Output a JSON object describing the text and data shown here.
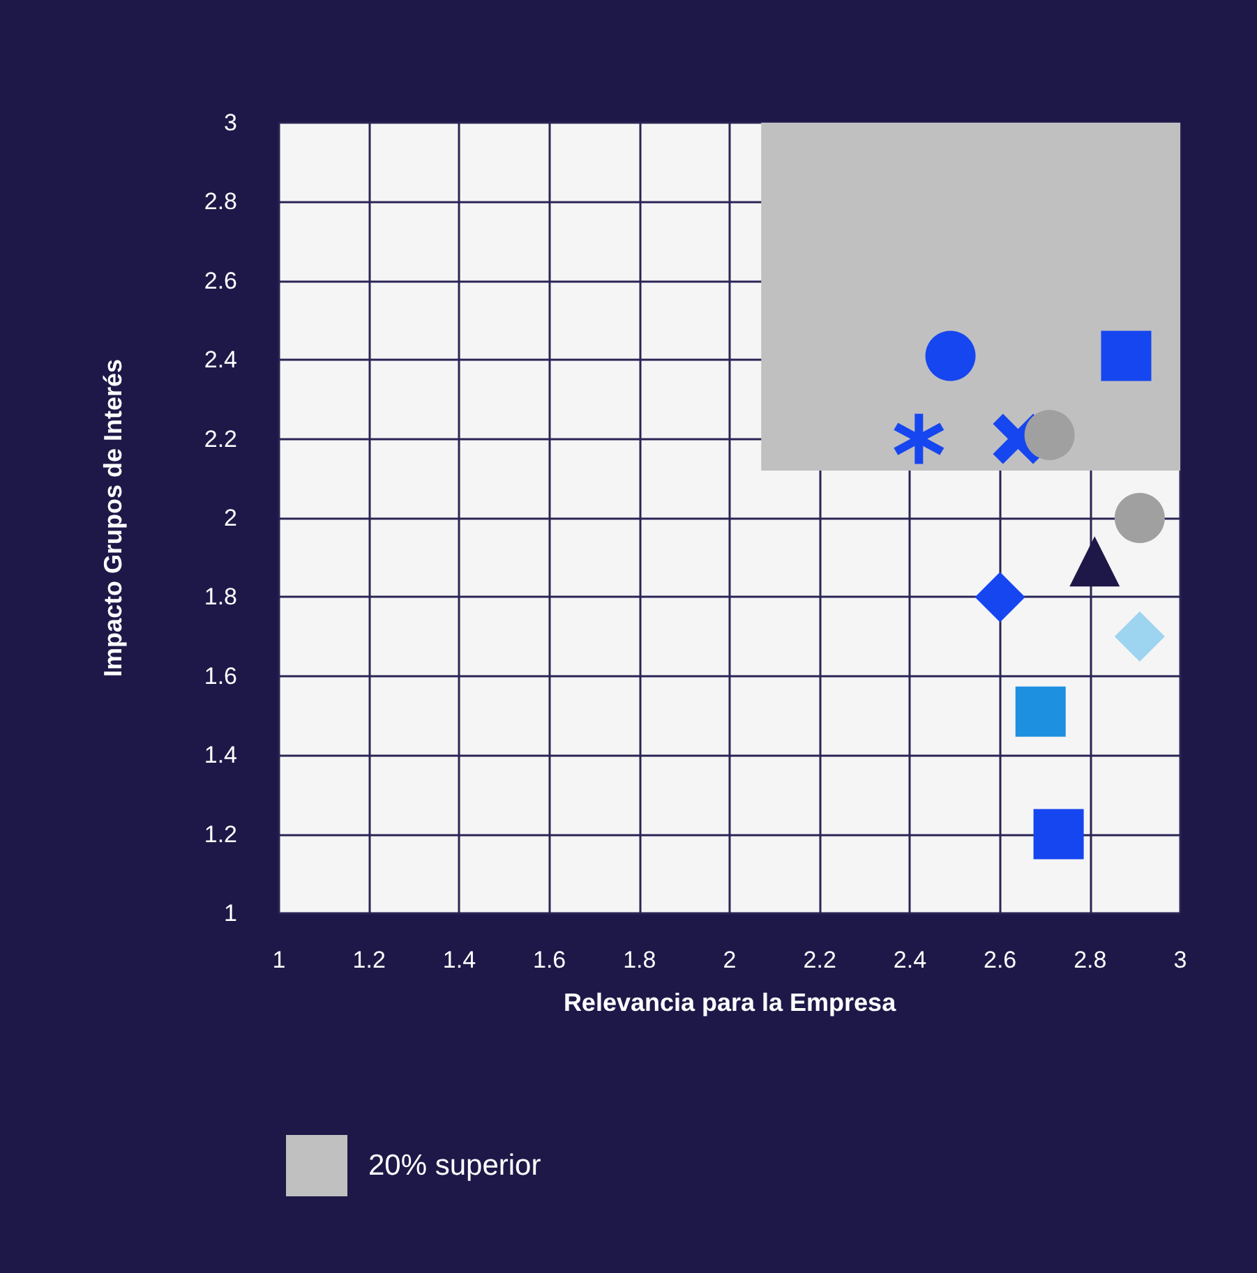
{
  "chart_data": {
    "type": "scatter",
    "xlabel": "Relevancia para la Empresa",
    "ylabel": "Impacto Grupos de Interés",
    "xlim": [
      1,
      3
    ],
    "ylim": [
      1,
      3
    ],
    "xticks": [
      1,
      1.2,
      1.4,
      1.6,
      1.8,
      2,
      2.2,
      2.4,
      2.6,
      2.8,
      3
    ],
    "yticks": [
      1,
      1.2,
      1.4,
      1.6,
      1.8,
      2,
      2.2,
      2.4,
      2.6,
      2.8,
      3
    ],
    "grid": true,
    "legend": "bottom left",
    "series": [
      {
        "type": "area",
        "name": "20% superior",
        "color": "#c0c0c0",
        "x": [
          2.07,
          3
        ],
        "values": [
          null,
          null
        ],
        "lower": [
          2.12,
          2.12
        ],
        "upper": [
          3,
          3
        ]
      },
      {
        "x": [
          2.49
        ],
        "values": [
          2.41
        ],
        "color": "#1646f0",
        "marker": "circle"
      },
      {
        "x": [
          2.88
        ],
        "values": [
          2.41
        ],
        "color": "#1646f0",
        "marker": "square"
      },
      {
        "x": [
          2.42
        ],
        "values": [
          2.2
        ],
        "color": "#1646f0",
        "marker": "star"
      },
      {
        "x": [
          2.64
        ],
        "values": [
          2.2
        ],
        "color": "#1646f0",
        "marker": "cross"
      },
      {
        "x": [
          2.71
        ],
        "values": [
          2.21
        ],
        "color": "#a0a0a0",
        "marker": "circle"
      },
      {
        "x": [
          2.91
        ],
        "values": [
          2.0
        ],
        "color": "#a0a0a0",
        "marker": "circle"
      },
      {
        "x": [
          2.81
        ],
        "values": [
          1.89
        ],
        "color": "#1e1848",
        "marker": "triangle"
      },
      {
        "x": [
          2.6
        ],
        "values": [
          1.8
        ],
        "color": "#1646f0",
        "marker": "diamond"
      },
      {
        "x": [
          2.91
        ],
        "values": [
          1.7
        ],
        "color": "#9dd4f0",
        "marker": "diamond"
      },
      {
        "x": [
          2.69
        ],
        "values": [
          1.51
        ],
        "color": "#1e90e0",
        "marker": "square"
      },
      {
        "x": [
          2.73
        ],
        "values": [
          1.2
        ],
        "color": "#1646f0",
        "marker": "square"
      }
    ]
  }
}
